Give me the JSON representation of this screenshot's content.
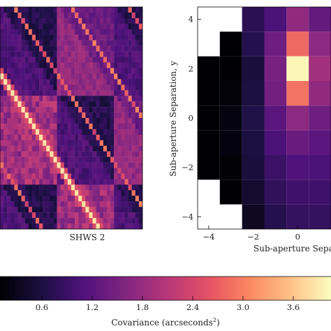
{
  "chart_data": [
    {
      "type": "heatmap",
      "subtitle": "SHWS 2",
      "description_of_pattern": "block-structured covariance matrix (partially cropped at left edge), bright diagonal"
    },
    {
      "type": "heatmap",
      "ylabel": "Sub-aperture Separation, y",
      "xlabel": "Sub-aperture Separation, x",
      "xlabel_visible": "Sub-aperture Separa",
      "x": [
        -4,
        -3,
        -2,
        -1,
        0,
        1
      ],
      "y": [
        4,
        3,
        2,
        1,
        0,
        -1,
        -2,
        -3,
        -4
      ],
      "x_ticks": [
        -4,
        -2,
        0
      ],
      "y_ticks": [
        4,
        2,
        0,
        -2,
        -4
      ],
      "xlim": [
        -4.5,
        1.5
      ],
      "ylim": [
        -4.5,
        4.5
      ],
      "values": [
        [
          null,
          null,
          0.75,
          1.05,
          1.75,
          1.3
        ],
        [
          null,
          0.05,
          0.7,
          1.4,
          2.8,
          1.7
        ],
        [
          0.0,
          0.1,
          0.55,
          1.5,
          4.0,
          1.9
        ],
        [
          0.02,
          0.15,
          0.6,
          1.45,
          2.9,
          1.75
        ],
        [
          0.04,
          0.2,
          0.65,
          1.2,
          1.7,
          1.4
        ],
        [
          0.03,
          0.18,
          0.6,
          1.05,
          1.35,
          1.2
        ],
        [
          0.02,
          0.12,
          0.55,
          0.9,
          1.1,
          1.05
        ],
        [
          null,
          0.06,
          0.45,
          0.8,
          0.95,
          0.95
        ],
        [
          null,
          null,
          0.35,
          0.7,
          0.85,
          0.85
        ]
      ]
    },
    {
      "type": "colorbar",
      "label": "Covariance (arcseconds",
      "label_sup": "2",
      "label_end": ")",
      "ticks": [
        "0.6",
        "1.2",
        "1.8",
        "2.4",
        "3.0",
        "3.6"
      ],
      "range": [
        0.1,
        4.05
      ],
      "colormap": "magma"
    }
  ]
}
